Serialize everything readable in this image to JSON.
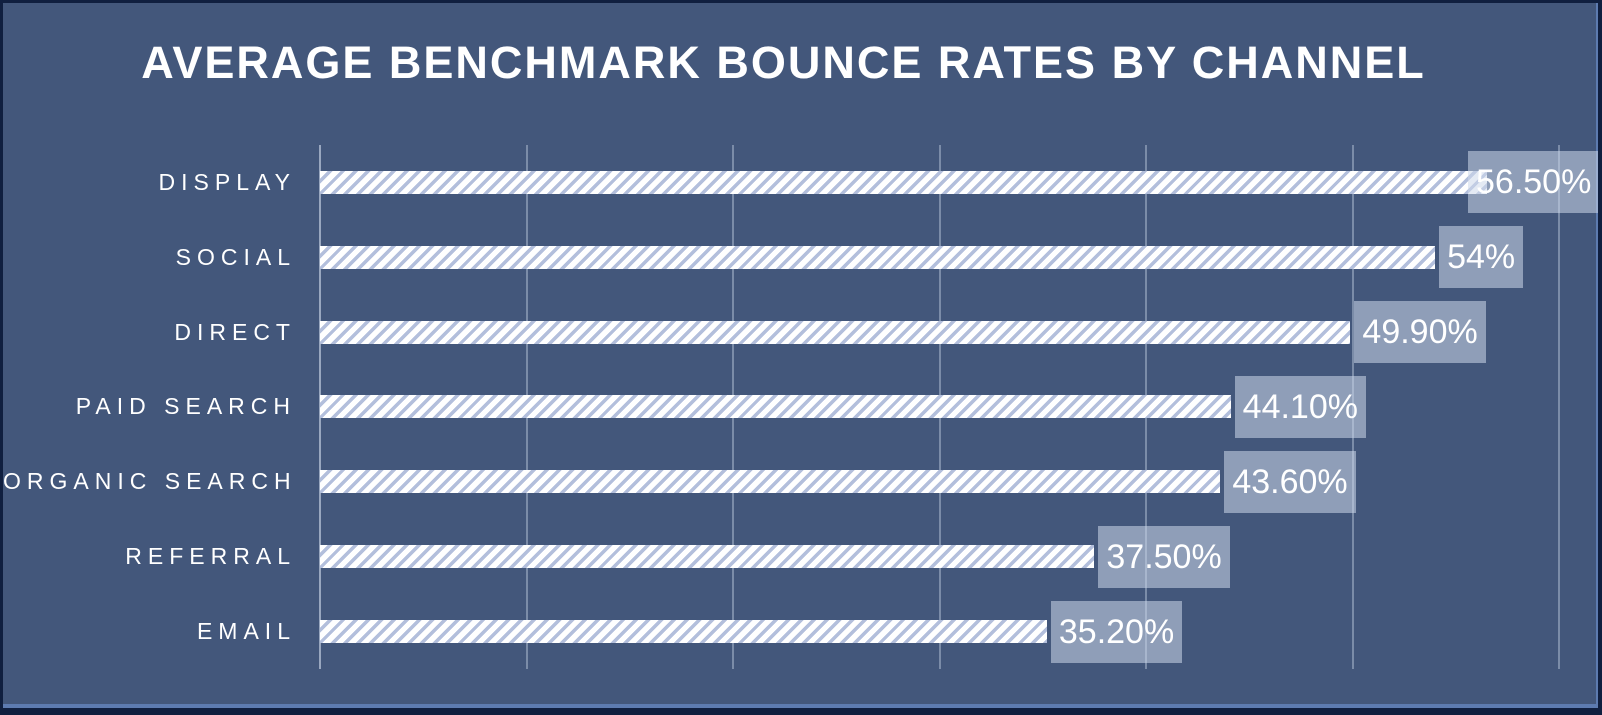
{
  "chart_data": {
    "type": "bar",
    "orientation": "horizontal",
    "title": "AVERAGE BENCHMARK BOUNCE RATES BY CHANNEL",
    "categories": [
      "DISPLAY",
      "SOCIAL",
      "DIRECT",
      "PAID SEARCH",
      "ORGANIC SEARCH",
      "REFERRAL",
      "EMAIL"
    ],
    "values": [
      56.5,
      54,
      49.9,
      44.1,
      43.6,
      37.5,
      35.2
    ],
    "value_labels": [
      "56.50%",
      "54%",
      "49.90%",
      "44.10%",
      "43.60%",
      "37.50%",
      "35.20%"
    ],
    "xlabel": "",
    "ylabel": "",
    "xlim": [
      0,
      60
    ],
    "gridline_step": 10,
    "grid": true,
    "legend": false,
    "axis_tick_labels_visible": false,
    "bar_style": "white-diagonal-hatch",
    "colors": {
      "background": "#43577b",
      "border_dark": "#101f3f",
      "border_light": "#5d7bb0",
      "bar_base": "#ffffff",
      "bar_hatch": "#b3bfdc",
      "gridline": "rgba(215,226,243,0.38)",
      "axis_line": "rgba(224,233,248,0.55)",
      "value_box": "rgba(206,216,235,0.55)",
      "text": "#ffffff"
    }
  }
}
